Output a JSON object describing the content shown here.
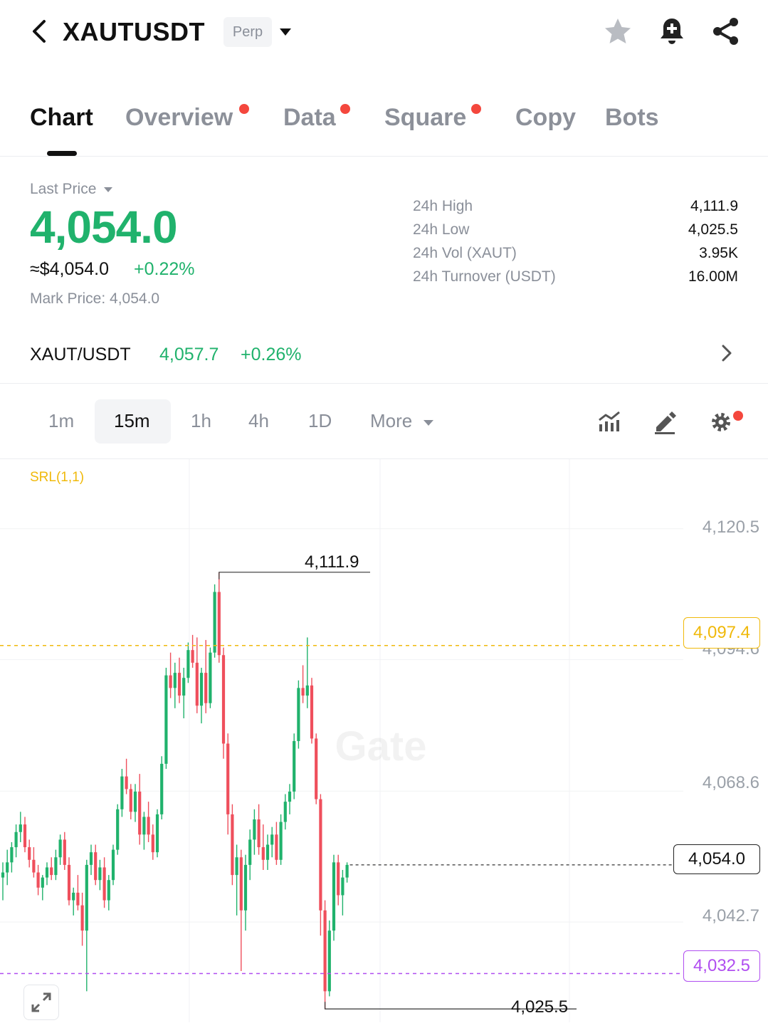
{
  "header": {
    "pair": "XAUTUSDT",
    "badge": "Perp",
    "icons": [
      "back-icon",
      "caret-down-icon",
      "star-icon",
      "bell-plus-icon",
      "share-icon"
    ]
  },
  "tabs": [
    {
      "label": "Chart",
      "active": true,
      "dot": false
    },
    {
      "label": "Overview",
      "active": false,
      "dot": true
    },
    {
      "label": "Data",
      "active": false,
      "dot": true
    },
    {
      "label": "Square",
      "active": false,
      "dot": true
    },
    {
      "label": "Copy",
      "active": false,
      "dot": false
    },
    {
      "label": "Bots",
      "active": false,
      "dot": false
    }
  ],
  "price": {
    "last_label": "Last Price",
    "last_price": "4,054.0",
    "usd_value": "≈$4,054.0",
    "change": "+0.22%",
    "mark_price": "Mark Price: 4,054.0"
  },
  "stats": [
    {
      "label": "24h High",
      "value": "4,111.9"
    },
    {
      "label": "24h Low",
      "value": "4,025.5"
    },
    {
      "label": "24h Vol (XAUT)",
      "value": "3.95K"
    },
    {
      "label": "24h Turnover (USDT)",
      "value": "16.00M"
    }
  ],
  "spot": {
    "pair": "XAUT/USDT",
    "price": "4,057.7",
    "change": "+0.26%"
  },
  "intervals": [
    {
      "label": "1m",
      "active": false
    },
    {
      "label": "15m",
      "active": true
    },
    {
      "label": "1h",
      "active": false
    },
    {
      "label": "4h",
      "active": false
    },
    {
      "label": "1D",
      "active": false
    },
    {
      "label": "More",
      "active": false
    }
  ],
  "toolbar_icons": [
    "indicators-icon",
    "draw-icon",
    "settings-icon"
  ],
  "colors": {
    "up": "#20b26c",
    "down": "#ef4f5c",
    "accent_yellow": "#f0b90b",
    "accent_purple": "#b04ef0"
  },
  "chart_data": {
    "type": "candlestick",
    "indicator": "SRL(1,1)",
    "watermark": "Gate",
    "y_axis_labels": [
      "4,120.5",
      "4,094.6",
      "4,068.6",
      "4,042.7"
    ],
    "ylim": [
      4023.0,
      4123.0
    ],
    "high_marker": "4,111.9",
    "low_marker": "4,025.5",
    "srl_upper": {
      "value": 4097.4,
      "label": "4,097.4"
    },
    "srl_lower": {
      "value": 4032.5,
      "label": "4,032.5"
    },
    "last_price": {
      "value": 4054.0,
      "label": "4,054.0"
    },
    "candles": [
      [
        4051.5,
        4054.5,
        4047.0,
        4052.5
      ],
      [
        4052.5,
        4057.0,
        4050.0,
        4054.5
      ],
      [
        4054.5,
        4058.5,
        4052.5,
        4057.5
      ],
      [
        4057.5,
        4062.0,
        4055.5,
        4060.5
      ],
      [
        4060.5,
        4064.5,
        4058.5,
        4062.0
      ],
      [
        4062.0,
        4063.5,
        4056.5,
        4057.5
      ],
      [
        4057.5,
        4059.0,
        4053.5,
        4055.0
      ],
      [
        4055.0,
        4057.5,
        4051.5,
        4052.5
      ],
      [
        4052.5,
        4054.0,
        4048.0,
        4049.5
      ],
      [
        4049.5,
        4052.0,
        4047.0,
        4051.5
      ],
      [
        4051.5,
        4054.5,
        4050.0,
        4053.5
      ],
      [
        4053.5,
        4055.5,
        4051.0,
        4052.0
      ],
      [
        4052.0,
        4057.0,
        4051.0,
        4055.5
      ],
      [
        4055.5,
        4060.0,
        4054.0,
        4059.0
      ],
      [
        4059.0,
        4060.5,
        4053.0,
        4054.0
      ],
      [
        4054.0,
        4055.5,
        4046.0,
        4047.0
      ],
      [
        4047.0,
        4049.5,
        4044.0,
        4048.5
      ],
      [
        4048.5,
        4052.0,
        4045.0,
        4046.0
      ],
      [
        4046.0,
        4048.5,
        4038.0,
        4041.0
      ],
      [
        4041.0,
        4055.0,
        4029.0,
        4054.0
      ],
      [
        4054.0,
        4058.0,
        4052.0,
        4056.5
      ],
      [
        4056.5,
        4058.0,
        4050.0,
        4051.0
      ],
      [
        4051.0,
        4055.0,
        4049.0,
        4053.5
      ],
      [
        4053.5,
        4055.5,
        4045.5,
        4047.0
      ],
      [
        4047.0,
        4052.0,
        4045.0,
        4051.0
      ],
      [
        4051.0,
        4058.0,
        4050.0,
        4057.0
      ],
      [
        4057.0,
        4066.0,
        4056.0,
        4065.0
      ],
      [
        4065.0,
        4073.0,
        4063.5,
        4071.5
      ],
      [
        4071.5,
        4075.0,
        4068.0,
        4069.0
      ],
      [
        4069.0,
        4070.0,
        4063.0,
        4064.5
      ],
      [
        4064.5,
        4070.0,
        4062.5,
        4068.5
      ],
      [
        4068.5,
        4072.0,
        4058.0,
        4060.0
      ],
      [
        4060.0,
        4064.5,
        4057.0,
        4063.5
      ],
      [
        4063.5,
        4066.5,
        4058.5,
        4060.0
      ],
      [
        4060.0,
        4062.0,
        4055.0,
        4056.5
      ],
      [
        4056.5,
        4065.0,
        4055.5,
        4064.0
      ],
      [
        4064.0,
        4075.5,
        4063.0,
        4074.0
      ],
      [
        4074.0,
        4093.0,
        4073.0,
        4091.5
      ],
      [
        4091.5,
        4096.0,
        4087.0,
        4089.0
      ],
      [
        4089.0,
        4094.0,
        4085.0,
        4092.0
      ],
      [
        4092.0,
        4095.0,
        4086.0,
        4087.5
      ],
      [
        4087.5,
        4093.0,
        4083.0,
        4091.0
      ],
      [
        4091.0,
        4098.0,
        4090.0,
        4096.5
      ],
      [
        4096.5,
        4099.5,
        4093.0,
        4094.0
      ],
      [
        4094.0,
        4099.0,
        4084.0,
        4085.5
      ],
      [
        4085.5,
        4093.0,
        4082.0,
        4092.0
      ],
      [
        4092.0,
        4098.5,
        4084.0,
        4086.0
      ],
      [
        4086.0,
        4097.0,
        4085.0,
        4096.0
      ],
      [
        4096.0,
        4109.5,
        4095.0,
        4108.0
      ],
      [
        4108.0,
        4111.9,
        4094.0,
        4095.5
      ],
      [
        4095.5,
        4097.0,
        4075.0,
        4078.0
      ],
      [
        4078.0,
        4080.0,
        4060.0,
        4064.0
      ],
      [
        4064.0,
        4066.0,
        4050.0,
        4052.0
      ],
      [
        4052.0,
        4058.0,
        4044.0,
        4055.5
      ],
      [
        4055.5,
        4057.0,
        4033.0,
        4045.0
      ],
      [
        4045.0,
        4056.0,
        4041.0,
        4054.0
      ],
      [
        4054.0,
        4061.0,
        4051.0,
        4059.0
      ],
      [
        4059.0,
        4065.0,
        4056.0,
        4063.0
      ],
      [
        4063.0,
        4066.0,
        4056.0,
        4057.5
      ],
      [
        4057.5,
        4062.0,
        4053.0,
        4055.0
      ],
      [
        4055.0,
        4060.0,
        4053.0,
        4058.0
      ],
      [
        4058.0,
        4061.5,
        4055.5,
        4060.0
      ],
      [
        4060.0,
        4062.5,
        4054.0,
        4055.0
      ],
      [
        4055.0,
        4064.0,
        4054.0,
        4062.5
      ],
      [
        4062.5,
        4068.0,
        4061.0,
        4066.5
      ],
      [
        4066.5,
        4070.0,
        4064.0,
        4068.5
      ],
      [
        4068.5,
        4080.0,
        4067.0,
        4078.5
      ],
      [
        4078.5,
        4090.5,
        4077.0,
        4089.0
      ],
      [
        4089.0,
        4093.5,
        4086.0,
        4087.5
      ],
      [
        4087.5,
        4099.0,
        4085.0,
        4089.5
      ],
      [
        4089.5,
        4091.0,
        4078.0,
        4079.0
      ],
      [
        4079.0,
        4080.0,
        4066.0,
        4067.0
      ],
      [
        4067.0,
        4068.0,
        4040.0,
        4045.0
      ],
      [
        4045.0,
        4047.0,
        4025.5,
        4029.0
      ],
      [
        4029.0,
        4043.0,
        4028.0,
        4041.0
      ],
      [
        4041.0,
        4056.0,
        4039.0,
        4054.5
      ],
      [
        4054.5,
        4056.0,
        4046.0,
        4048.0
      ],
      [
        4048.0,
        4053.0,
        4044.0,
        4051.5
      ],
      [
        4051.5,
        4054.5,
        4050.5,
        4054.0
      ]
    ]
  }
}
